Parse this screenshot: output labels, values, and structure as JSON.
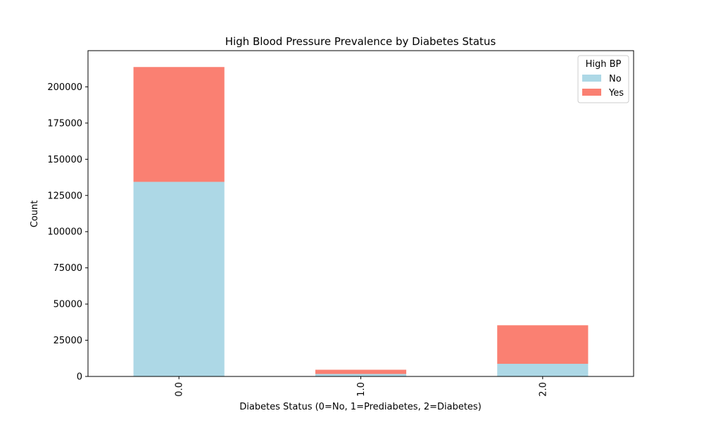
{
  "chart_data": {
    "type": "bar",
    "stacked": true,
    "title": "High Blood Pressure Prevalence by Diabetes Status",
    "xlabel": "Diabetes Status (0=No, 1=Prediabetes, 2=Diabetes)",
    "ylabel": "Count",
    "categories": [
      "0.0",
      "1.0",
      "2.0"
    ],
    "series": [
      {
        "name": "No",
        "values": [
          134391,
          1718,
          8742
        ],
        "color": "#add8e6"
      },
      {
        "name": "Yes",
        "values": [
          79312,
          2913,
          26604
        ],
        "color": "#fa8072"
      }
    ],
    "ylim": [
      0,
      225000
    ],
    "yticks": [
      0,
      25000,
      50000,
      75000,
      100000,
      125000,
      150000,
      175000,
      200000
    ],
    "grid": false,
    "legend": {
      "title": "High BP",
      "placement": "top-right"
    },
    "xtick_rotation": "vertical"
  }
}
